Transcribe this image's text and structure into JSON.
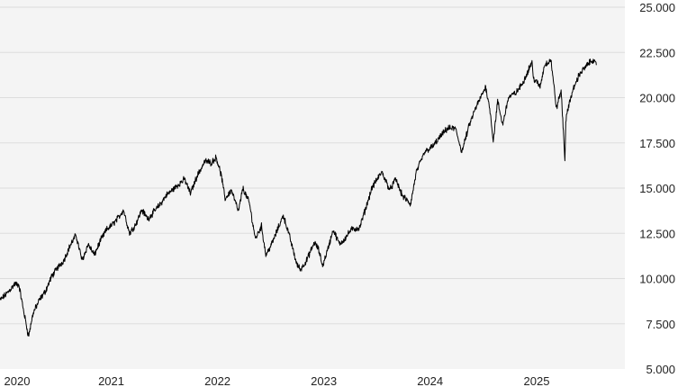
{
  "colors": {
    "plot_background": "#f4f4f4",
    "gridline": "#dddddd",
    "line": "#000000",
    "text": "#222222"
  },
  "chart_data": {
    "type": "line",
    "title": "",
    "xlabel": "",
    "ylabel": "",
    "x_axis": {
      "type": "date",
      "range": [
        "2019-12-16",
        "2025-10-31"
      ]
    },
    "ylim": [
      5000,
      25000
    ],
    "y_axis_position": "right",
    "grid": {
      "horizontal": true,
      "vertical": false
    },
    "legend": "none",
    "x_tick_labels": [
      {
        "label": "2020",
        "date": "2020-01-01"
      },
      {
        "label": "2021",
        "date": "2021-01-01"
      },
      {
        "label": "2022",
        "date": "2022-01-01"
      },
      {
        "label": "2023",
        "date": "2023-01-01"
      },
      {
        "label": "2024",
        "date": "2024-01-01"
      },
      {
        "label": "2025",
        "date": "2025-01-01"
      }
    ],
    "y_tick_labels": [
      {
        "label": "5.000",
        "value": 5000
      },
      {
        "label": "7.500",
        "value": 7500
      },
      {
        "label": "10.000",
        "value": 10000
      },
      {
        "label": "12.500",
        "value": 12500
      },
      {
        "label": "15.000",
        "value": 15000
      },
      {
        "label": "17.500",
        "value": 17500
      },
      {
        "label": "20.000",
        "value": 20000
      },
      {
        "label": "22.500",
        "value": 22500
      },
      {
        "label": "25.000",
        "value": 25000
      }
    ],
    "series": [
      {
        "values": [
          [
            "2019-12-16",
            8800
          ],
          [
            "2020-01-10",
            9200
          ],
          [
            "2020-02-05",
            9700
          ],
          [
            "2020-02-19",
            9650
          ],
          [
            "2020-03-04",
            8400
          ],
          [
            "2020-03-23",
            6800
          ],
          [
            "2020-04-08",
            8100
          ],
          [
            "2020-04-29",
            8800
          ],
          [
            "2020-05-20",
            9300
          ],
          [
            "2020-06-10",
            10100
          ],
          [
            "2020-07-01",
            10600
          ],
          [
            "2020-07-22",
            11000
          ],
          [
            "2020-08-12",
            11800
          ],
          [
            "2020-09-02",
            12400
          ],
          [
            "2020-09-23",
            11000
          ],
          [
            "2020-10-14",
            11900
          ],
          [
            "2020-11-04",
            11300
          ],
          [
            "2020-11-25",
            12100
          ],
          [
            "2020-12-16",
            12700
          ],
          [
            "2021-01-06",
            13000
          ],
          [
            "2021-01-27",
            13400
          ],
          [
            "2021-02-12",
            13800
          ],
          [
            "2021-03-05",
            12500
          ],
          [
            "2021-03-26",
            13000
          ],
          [
            "2021-04-16",
            13800
          ],
          [
            "2021-05-07",
            13300
          ],
          [
            "2021-05-28",
            13700
          ],
          [
            "2021-06-18",
            14100
          ],
          [
            "2021-07-09",
            14600
          ],
          [
            "2021-07-30",
            14900
          ],
          [
            "2021-08-20",
            15200
          ],
          [
            "2021-09-10",
            15500
          ],
          [
            "2021-09-30",
            14700
          ],
          [
            "2021-10-21",
            15600
          ],
          [
            "2021-11-19",
            16500
          ],
          [
            "2021-12-10",
            16400
          ],
          [
            "2021-12-28",
            16700
          ],
          [
            "2022-01-14",
            15700
          ],
          [
            "2022-01-27",
            14400
          ],
          [
            "2022-02-18",
            14900
          ],
          [
            "2022-03-14",
            13700
          ],
          [
            "2022-03-29",
            15000
          ],
          [
            "2022-04-20",
            14200
          ],
          [
            "2022-05-11",
            12200
          ],
          [
            "2022-06-01",
            12900
          ],
          [
            "2022-06-16",
            11300
          ],
          [
            "2022-07-06",
            11900
          ],
          [
            "2022-08-15",
            13500
          ],
          [
            "2022-09-06",
            12300
          ],
          [
            "2022-09-30",
            10800
          ],
          [
            "2022-10-13",
            10500
          ],
          [
            "2022-11-03",
            11000
          ],
          [
            "2022-11-30",
            12000
          ],
          [
            "2022-12-14",
            11600
          ],
          [
            "2022-12-28",
            10700
          ],
          [
            "2023-01-18",
            11800
          ],
          [
            "2023-02-02",
            12700
          ],
          [
            "2023-02-24",
            11900
          ],
          [
            "2023-03-14",
            12200
          ],
          [
            "2023-04-05",
            12700
          ],
          [
            "2023-05-04",
            12800
          ],
          [
            "2023-05-31",
            14200
          ],
          [
            "2023-06-15",
            15000
          ],
          [
            "2023-07-19",
            15900
          ],
          [
            "2023-08-16",
            14900
          ],
          [
            "2023-09-05",
            15500
          ],
          [
            "2023-09-27",
            14600
          ],
          [
            "2023-10-26",
            14100
          ],
          [
            "2023-11-15",
            15900
          ],
          [
            "2023-12-14",
            17000
          ],
          [
            "2024-01-10",
            17300
          ],
          [
            "2024-02-08",
            17900
          ],
          [
            "2024-03-01",
            18300
          ],
          [
            "2024-03-28",
            18300
          ],
          [
            "2024-04-19",
            17000
          ],
          [
            "2024-05-15",
            18500
          ],
          [
            "2024-06-05",
            19400
          ],
          [
            "2024-07-10",
            20600
          ],
          [
            "2024-07-25",
            19300
          ],
          [
            "2024-08-05",
            17600
          ],
          [
            "2024-08-20",
            19800
          ],
          [
            "2024-09-06",
            18500
          ],
          [
            "2024-09-26",
            20000
          ],
          [
            "2024-10-24",
            20300
          ],
          [
            "2024-11-14",
            20800
          ],
          [
            "2024-12-16",
            22000
          ],
          [
            "2024-12-20",
            21100
          ],
          [
            "2025-01-13",
            20600
          ],
          [
            "2025-01-28",
            21800
          ],
          [
            "2025-02-19",
            22100
          ],
          [
            "2025-03-10",
            19400
          ],
          [
            "2025-03-26",
            20400
          ],
          [
            "2025-04-04",
            17800
          ],
          [
            "2025-04-08",
            16500
          ],
          [
            "2025-04-11",
            18700
          ],
          [
            "2025-04-24",
            19800
          ],
          [
            "2025-05-12",
            20700
          ],
          [
            "2025-05-28",
            21300
          ],
          [
            "2025-06-18",
            21700
          ],
          [
            "2025-07-11",
            22100
          ],
          [
            "2025-07-25",
            21800
          ]
        ]
      }
    ]
  }
}
